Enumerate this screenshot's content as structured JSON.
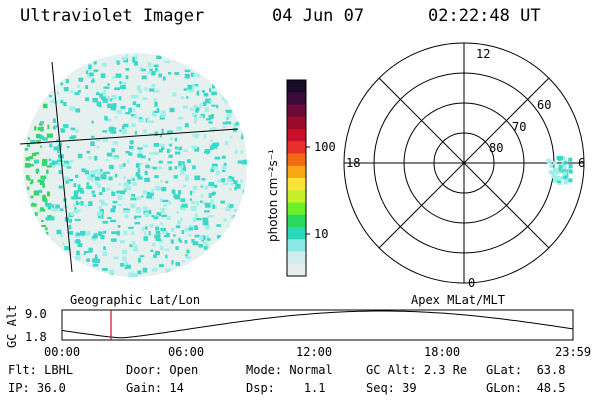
{
  "header": {
    "instrument": "Ultraviolet Imager",
    "date": "04 Jun 07",
    "time": "02:22:48 UT"
  },
  "image_panel": {
    "caption": "Geographic Lat/Lon",
    "colors": {
      "base": "#e6f1ef",
      "mid": "#3ad8c8",
      "high": "#38d468",
      "low": "#9ef0e8"
    }
  },
  "colorbar": {
    "unit_label": "photon cm⁻²s⁻¹",
    "ticks": [
      "100",
      "10"
    ],
    "scale": "log",
    "colors": [
      "#1a0a2a",
      "#3a0a3a",
      "#6a0a3a",
      "#9a0a2a",
      "#c8102a",
      "#e8302a",
      "#f26a14",
      "#f8a812",
      "#f8e43a",
      "#c8f02a",
      "#6af02a",
      "#2ad860",
      "#2ad8b8",
      "#8ae8e8",
      "#cfeeee",
      "#e8eeee"
    ]
  },
  "polar_plot": {
    "caption": "Apex MLat/MLT",
    "mlt_labels": {
      "top": "12",
      "left": "18",
      "right": "6",
      "bottom": "0"
    },
    "lat_labels": [
      "60",
      "70",
      "80"
    ]
  },
  "gc_alt_strip": {
    "ylabel": "GC Alt",
    "yticks": [
      "9.0",
      "1.8"
    ],
    "xticks": [
      "00:00",
      "06:00",
      "12:00",
      "18:00",
      "23:59"
    ],
    "marker_color": "#c01010"
  },
  "status": {
    "row1": [
      {
        "label": "Flt:",
        "value": "LBHL"
      },
      {
        "label": "Door:",
        "value": "Open"
      },
      {
        "label": "Mode:",
        "value": "Normal"
      },
      {
        "label": "GC Alt:",
        "value": "2.3 Re"
      },
      {
        "label": "GLat:",
        "value": "63.8"
      }
    ],
    "row2": [
      {
        "label": "IP:",
        "value": "36.0"
      },
      {
        "label": "Gain:",
        "value": "14"
      },
      {
        "label": "Dsp:",
        "value": "1.1"
      },
      {
        "label": "Seq:",
        "value": "39"
      },
      {
        "label": "GLon:",
        "value": "48.5"
      }
    ]
  }
}
